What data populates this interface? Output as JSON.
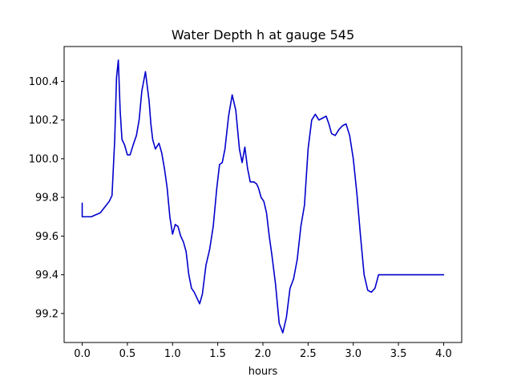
{
  "chart_data": {
    "type": "line",
    "title": "Water Depth h at gauge 545",
    "xlabel": "hours",
    "ylabel": "",
    "xlim": [
      -0.2,
      4.2
    ],
    "ylim": [
      99.05,
      100.58
    ],
    "xticks": [
      0.0,
      0.5,
      1.0,
      1.5,
      2.0,
      2.5,
      3.0,
      3.5,
      4.0
    ],
    "xtick_labels": [
      "0.0",
      "0.5",
      "1.0",
      "1.5",
      "2.0",
      "2.5",
      "3.0",
      "3.5",
      "4.0"
    ],
    "yticks": [
      99.2,
      99.4,
      99.6,
      99.8,
      100.0,
      100.2,
      100.4
    ],
    "ytick_labels": [
      "99.2",
      "99.4",
      "99.6",
      "99.8",
      "100.0",
      "100.2",
      "100.4"
    ],
    "grid": false,
    "series": [
      {
        "color": "#0000cc",
        "x": [
          0.0,
          0.0,
          0.02,
          0.1,
          0.2,
          0.3,
          0.33,
          0.36,
          0.38,
          0.4,
          0.42,
          0.44,
          0.47,
          0.5,
          0.53,
          0.57,
          0.6,
          0.63,
          0.66,
          0.7,
          0.74,
          0.76,
          0.78,
          0.81,
          0.85,
          0.88,
          0.91,
          0.94,
          0.97,
          1.0,
          1.03,
          1.06,
          1.09,
          1.12,
          1.15,
          1.18,
          1.21,
          1.24,
          1.27,
          1.3,
          1.33,
          1.37,
          1.41,
          1.45,
          1.49,
          1.52,
          1.55,
          1.58,
          1.62,
          1.66,
          1.7,
          1.74,
          1.77,
          1.8,
          1.83,
          1.86,
          1.9,
          1.93,
          1.95,
          1.98,
          2.01,
          2.04,
          2.07,
          2.1,
          2.14,
          2.18,
          2.22,
          2.26,
          2.3,
          2.34,
          2.38,
          2.42,
          2.46,
          2.5,
          2.54,
          2.58,
          2.62,
          2.66,
          2.7,
          2.73,
          2.76,
          2.8,
          2.84,
          2.88,
          2.92,
          2.96,
          3.0,
          3.04,
          3.08,
          3.12,
          3.16,
          3.2,
          3.24,
          3.28,
          3.32,
          3.36,
          3.4,
          3.44,
          3.48,
          3.52,
          3.56,
          3.6,
          3.64,
          3.68,
          3.72,
          3.76,
          3.8,
          3.84,
          3.88,
          3.92,
          3.96,
          4.0
        ],
        "y": [
          99.77,
          99.7,
          99.7,
          99.7,
          99.72,
          99.78,
          99.81,
          100.1,
          100.42,
          100.51,
          100.25,
          100.1,
          100.07,
          100.02,
          100.02,
          100.08,
          100.12,
          100.2,
          100.35,
          100.45,
          100.3,
          100.18,
          100.1,
          100.05,
          100.08,
          100.03,
          99.95,
          99.85,
          99.7,
          99.61,
          99.66,
          99.65,
          99.6,
          99.57,
          99.52,
          99.4,
          99.33,
          99.31,
          99.28,
          99.25,
          99.3,
          99.45,
          99.53,
          99.65,
          99.85,
          99.97,
          99.98,
          100.05,
          100.22,
          100.33,
          100.25,
          100.05,
          99.98,
          100.06,
          99.95,
          99.88,
          99.88,
          99.87,
          99.85,
          99.8,
          99.78,
          99.72,
          99.6,
          99.5,
          99.35,
          99.15,
          99.1,
          99.18,
          99.33,
          99.38,
          99.48,
          99.65,
          99.76,
          100.05,
          100.2,
          100.23,
          100.2,
          100.21,
          100.22,
          100.18,
          100.13,
          100.12,
          100.15,
          100.17,
          100.18,
          100.12,
          100.0,
          99.82,
          99.6,
          99.4,
          99.32,
          99.31,
          99.33,
          99.4,
          99.4,
          99.4,
          99.4,
          99.4,
          99.4,
          99.4,
          99.4,
          99.4,
          99.4,
          99.4,
          99.4,
          99.4,
          99.4,
          99.4,
          99.4,
          99.4,
          99.4,
          99.4
        ]
      }
    ]
  }
}
